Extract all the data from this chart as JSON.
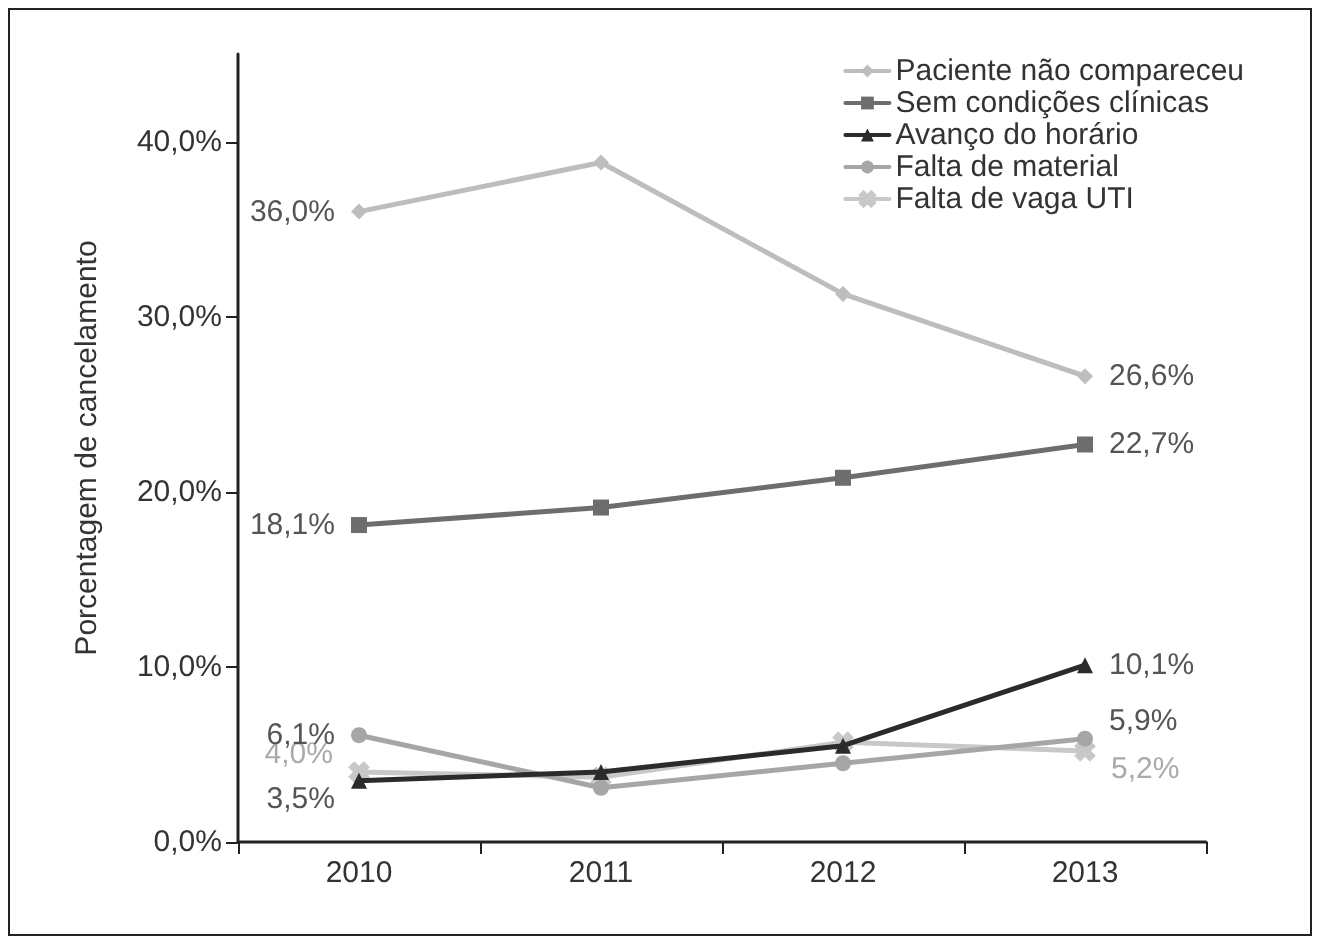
{
  "chart_data": {
    "type": "line",
    "ylabel": "Porcentagem de cancelamento",
    "categories": [
      "2010",
      "2011",
      "2012",
      "2013"
    ],
    "series": [
      {
        "name": "Paciente não compareceu",
        "color": "#bdbdbd",
        "marker": "diamond",
        "values": [
          36.0,
          38.8,
          31.3,
          26.6
        ],
        "value_labels": [
          "36,0%",
          null,
          null,
          "26,6%"
        ]
      },
      {
        "name": "Sem condições clínicas",
        "color": "#6d6d6d",
        "marker": "square",
        "values": [
          18.1,
          19.1,
          20.8,
          22.7
        ],
        "value_labels": [
          "18,1%",
          null,
          null,
          "22,7%"
        ]
      },
      {
        "name": "Avanço do horário",
        "color": "#2b2b2b",
        "marker": "triangle",
        "values": [
          3.5,
          4.0,
          5.5,
          10.1
        ],
        "value_labels": [
          "3,5%",
          null,
          null,
          "10,1%"
        ]
      },
      {
        "name": "Falta de material",
        "color": "#a6a6a6",
        "marker": "circle",
        "values": [
          6.1,
          3.1,
          4.5,
          5.9
        ],
        "value_labels": [
          "6,1%",
          null,
          null,
          "5,9%"
        ]
      },
      {
        "name": "Falta de vaga UTI",
        "color": "#c8c8c8",
        "marker": "cross",
        "values": [
          4.0,
          3.7,
          5.7,
          5.2
        ],
        "value_labels": [
          "4,0%",
          null,
          null,
          "5,2%"
        ]
      }
    ],
    "ylim": [
      0,
      45
    ],
    "yticks": [
      {
        "value": 0,
        "label": "0,0%"
      },
      {
        "value": 10,
        "label": "10,0%"
      },
      {
        "value": 20,
        "label": "20,0%"
      },
      {
        "value": 30,
        "label": "30,0%"
      },
      {
        "value": 40,
        "label": "40,0%"
      }
    ],
    "grid": false,
    "legend": "top right",
    "line_style": "solid"
  }
}
